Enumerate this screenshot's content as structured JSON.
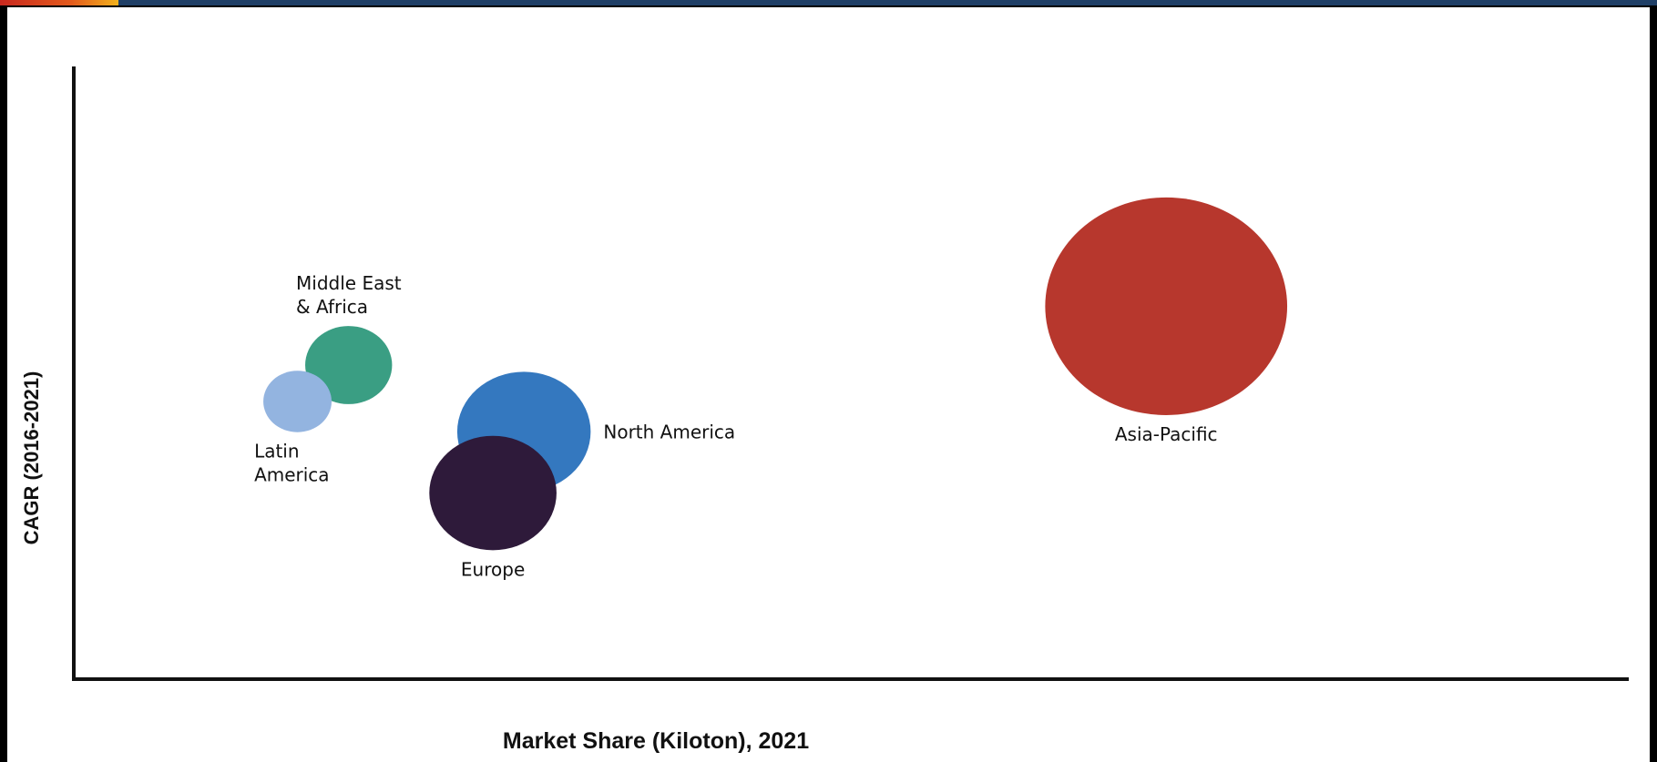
{
  "chart_data": {
    "type": "bubble",
    "xlabel": "Market Share (Kiloton), 2021",
    "ylabel": "CAGR (2016-2021)",
    "xlim": [
      0,
      100
    ],
    "ylim": [
      0,
      100
    ],
    "grid": false,
    "legend": "none",
    "points": [
      {
        "label": "Middle East & Africa",
        "label_lines": [
          "Middle East",
          "& Africa"
        ],
        "x": 17.6,
        "y": 51.5,
        "size": 5.6,
        "color": "#3a9e83",
        "label_pos": "above"
      },
      {
        "label": "Latin America",
        "label_lines": [
          "Latin",
          "America"
        ],
        "x": 14.3,
        "y": 45.5,
        "size": 4.4,
        "color": "#93b4e0",
        "label_pos": "below"
      },
      {
        "label": "North America",
        "label_lines": [
          "North America"
        ],
        "x": 28.9,
        "y": 40.5,
        "size": 8.6,
        "color": "#3478bf",
        "label_pos": "right"
      },
      {
        "label": "Europe",
        "label_lines": [
          "Europe"
        ],
        "x": 26.9,
        "y": 30.4,
        "size": 8.2,
        "color": "#2e1a3a",
        "label_pos": "below"
      },
      {
        "label": "Asia-Pacific",
        "label_lines": [
          "Asia-Pacific"
        ],
        "x": 70.3,
        "y": 61.2,
        "size": 15.6,
        "color": "#b7372d",
        "label_pos": "below"
      }
    ]
  }
}
